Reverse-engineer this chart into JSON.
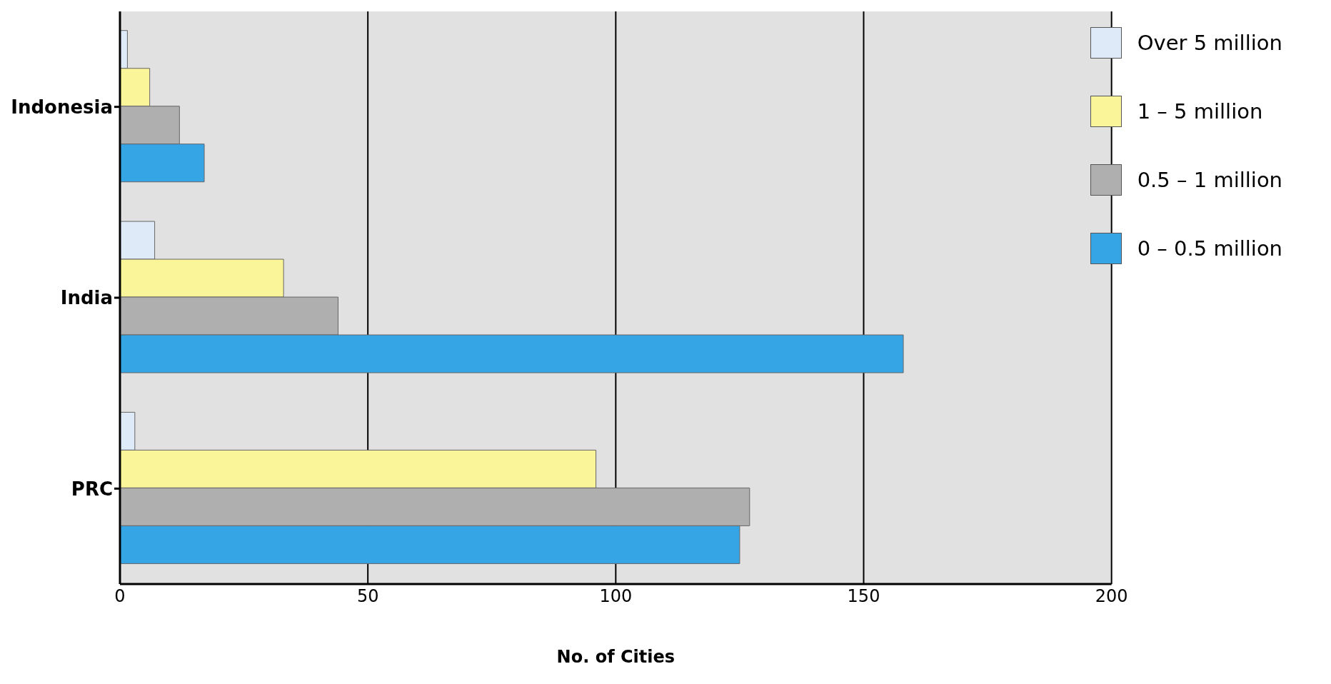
{
  "chart_data": {
    "type": "bar",
    "orientation": "horizontal",
    "xlabel": "No. of Cities",
    "categories": [
      "Indonesia",
      "India",
      "PRC"
    ],
    "series": [
      {
        "name": "Over 5 million",
        "color": "#deeaf8",
        "values": [
          1.5,
          7,
          3
        ]
      },
      {
        "name": "1 – 5 million",
        "color": "#fbf59a",
        "values": [
          6,
          33,
          96
        ]
      },
      {
        "name": "0.5 – 1 million",
        "color": "#afafaf",
        "values": [
          12,
          44,
          127
        ]
      },
      {
        "name": "0 – 0.5 million",
        "color": "#36a5e6",
        "values": [
          17,
          158,
          125
        ]
      }
    ],
    "xlim": [
      0,
      200
    ],
    "xticks": [
      0,
      50,
      100,
      150,
      200
    ],
    "grid": "x",
    "legend": "top right"
  }
}
